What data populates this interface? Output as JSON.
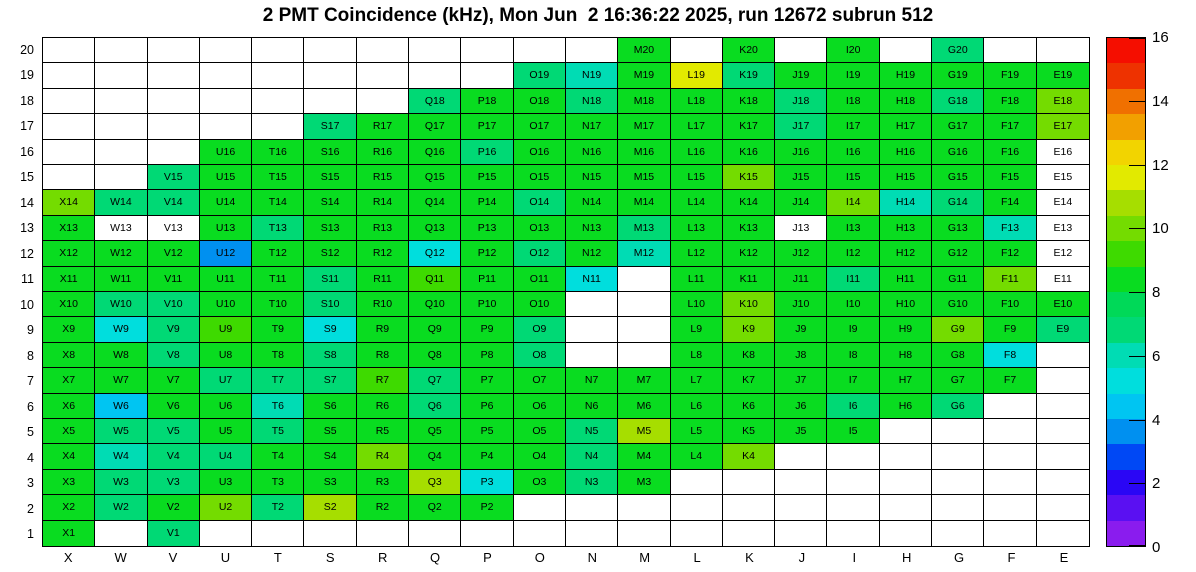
{
  "title": "2 PMT Coincidence (kHz), Mon Jun  2 16:36:22 2025, run 12672 subrun 512",
  "chart_data": {
    "type": "heatmap",
    "title": "2 PMT Coincidence (kHz), Mon Jun  2 16:36:22 2025, run 12672 subrun 512",
    "units": "kHz",
    "columns": [
      "X",
      "W",
      "V",
      "U",
      "T",
      "S",
      "R",
      "Q",
      "P",
      "O",
      "N",
      "M",
      "L",
      "K",
      "J",
      "I",
      "H",
      "G",
      "F",
      "E"
    ],
    "rows": [
      20,
      19,
      18,
      17,
      16,
      15,
      14,
      13,
      12,
      11,
      10,
      9,
      8,
      7,
      6,
      5,
      4,
      3,
      2,
      1
    ],
    "cell_label_format": "column letter + row number; empty string means no channel (blank white cell); code 'w' means labeled cell with ~0 value (white)",
    "palette": {
      "g": "#09dc20",
      "g2": "#3eda00",
      "lg": "#74dc00",
      "yg": "#a6de00",
      "y": "#e2ea00",
      "s": "#00d975",
      "t": "#00dcb4",
      "c": "#00dedd",
      "sky": "#00c5f2",
      "u": "#0090f0",
      "w": "#ffffff"
    },
    "approx_value_kHz_by_code": {
      "g": 8.4,
      "g2": 9.2,
      "lg": 10,
      "yg": 10.8,
      "y": 11.6,
      "s": 6.8,
      "t": 6.0,
      "c": 5.2,
      "sky": 4.4,
      "u": 3.6,
      "w": 0
    },
    "grid": [
      [
        "",
        "",
        "",
        "",
        "",
        "",
        "",
        "",
        "",
        "",
        "",
        "g",
        "",
        "g",
        "",
        "g",
        "",
        "s",
        "",
        ""
      ],
      [
        "",
        "",
        "",
        "",
        "",
        "",
        "",
        "",
        "",
        "s",
        "t",
        "g",
        "y",
        "s",
        "g",
        "g",
        "g",
        "g",
        "g",
        "g"
      ],
      [
        "",
        "",
        "",
        "",
        "",
        "",
        "",
        "s",
        "g",
        "g",
        "s",
        "g",
        "g",
        "g",
        "s",
        "g",
        "g",
        "s",
        "g",
        "lg"
      ],
      [
        "",
        "",
        "",
        "",
        "",
        "s",
        "g",
        "g",
        "g",
        "g",
        "g",
        "g",
        "g",
        "g",
        "s",
        "g",
        "g",
        "g",
        "g",
        "lg"
      ],
      [
        "",
        "",
        "",
        "g",
        "g",
        "g",
        "g",
        "g",
        "s",
        "g",
        "g",
        "g",
        "g",
        "g",
        "g",
        "g",
        "g",
        "g",
        "g",
        "w"
      ],
      [
        "",
        "",
        "s",
        "g",
        "g",
        "g",
        "g",
        "g",
        "g",
        "g",
        "g",
        "g",
        "g",
        "lg",
        "g",
        "g",
        "g",
        "g",
        "g",
        "w"
      ],
      [
        "lg",
        "s",
        "s",
        "g",
        "g",
        "g",
        "g",
        "g",
        "g",
        "s",
        "g",
        "g",
        "g",
        "g",
        "g",
        "lg",
        "t",
        "s",
        "g",
        "w"
      ],
      [
        "g",
        "w",
        "w",
        "g",
        "s",
        "g",
        "g",
        "g",
        "g",
        "g",
        "g",
        "s",
        "g",
        "g",
        "w",
        "g",
        "g",
        "g",
        "t",
        "w"
      ],
      [
        "g",
        "g",
        "g",
        "u",
        "g",
        "g",
        "g",
        "c",
        "g",
        "s",
        "g",
        "t",
        "g",
        "g",
        "g",
        "g",
        "g",
        "g",
        "g",
        "w"
      ],
      [
        "g",
        "g",
        "g",
        "g",
        "g",
        "s",
        "g",
        "g2",
        "g",
        "g",
        "c",
        "",
        "g",
        "g",
        "g",
        "s",
        "g",
        "g",
        "lg",
        "w"
      ],
      [
        "g",
        "s",
        "s",
        "g",
        "g",
        "s",
        "g",
        "g",
        "g",
        "g",
        "",
        "",
        "g",
        "lg",
        "g",
        "g",
        "g",
        "g",
        "g",
        "g"
      ],
      [
        "g",
        "c",
        "s",
        "g2",
        "g",
        "c",
        "g",
        "g",
        "g",
        "s",
        "",
        "",
        "g",
        "lg",
        "g",
        "g",
        "g",
        "lg",
        "g",
        "s"
      ],
      [
        "g",
        "g",
        "s",
        "g",
        "g",
        "s",
        "g",
        "g",
        "g",
        "s",
        "",
        "",
        "g",
        "g",
        "g",
        "g",
        "g",
        "g",
        "c",
        ""
      ],
      [
        "g",
        "g",
        "g",
        "s",
        "s",
        "s",
        "g2",
        "s",
        "g",
        "g",
        "g",
        "g",
        "g",
        "g",
        "g",
        "g",
        "g",
        "g",
        "g",
        ""
      ],
      [
        "g",
        "sky",
        "g",
        "g",
        "t",
        "g",
        "g",
        "s",
        "g",
        "g",
        "g",
        "g",
        "g",
        "g",
        "g",
        "s",
        "g",
        "s",
        "",
        ""
      ],
      [
        "g",
        "s",
        "s",
        "g",
        "s",
        "g",
        "g",
        "g",
        "g",
        "g",
        "s",
        "yg",
        "g",
        "g",
        "g",
        "g",
        "",
        "",
        "",
        ""
      ],
      [
        "g",
        "t",
        "s",
        "s",
        "g",
        "g",
        "lg",
        "g",
        "g",
        "g",
        "s",
        "g",
        "g",
        "lg",
        "",
        "",
        "",
        "",
        "",
        ""
      ],
      [
        "g",
        "s",
        "s",
        "g",
        "g",
        "g",
        "g",
        "yg",
        "c",
        "g",
        "s",
        "g",
        "",
        "",
        "",
        "",
        "",
        "",
        "",
        ""
      ],
      [
        "g",
        "s",
        "g",
        "lg",
        "s",
        "yg",
        "g",
        "g",
        "g",
        "",
        "",
        "",
        "",
        "",
        "",
        "",
        "",
        "",
        "",
        ""
      ],
      [
        "g",
        "",
        "s",
        "",
        "",
        "",
        "",
        "",
        "",
        "",
        "",
        "",
        "",
        "",
        "",
        "",
        "",
        "",
        "",
        ""
      ]
    ],
    "colorbar": {
      "min": 0,
      "max": 16,
      "ticks": [
        0,
        2,
        4,
        6,
        8,
        10,
        12,
        14,
        16
      ],
      "bands": 20,
      "colors_bottom_to_top": [
        "#8a1cee",
        "#5a10f2",
        "#2a06f5",
        "#0048f5",
        "#0090f0",
        "#00c5f2",
        "#00dedd",
        "#00dcb4",
        "#00d975",
        "#00d958",
        "#09dc20",
        "#3eda00",
        "#74dc00",
        "#a6de00",
        "#e2ea00",
        "#f2d400",
        "#f2a000",
        "#f07000",
        "#ee3200",
        "#f50e00"
      ]
    },
    "grid_lines": true,
    "legend_position": "right-colorbar"
  }
}
